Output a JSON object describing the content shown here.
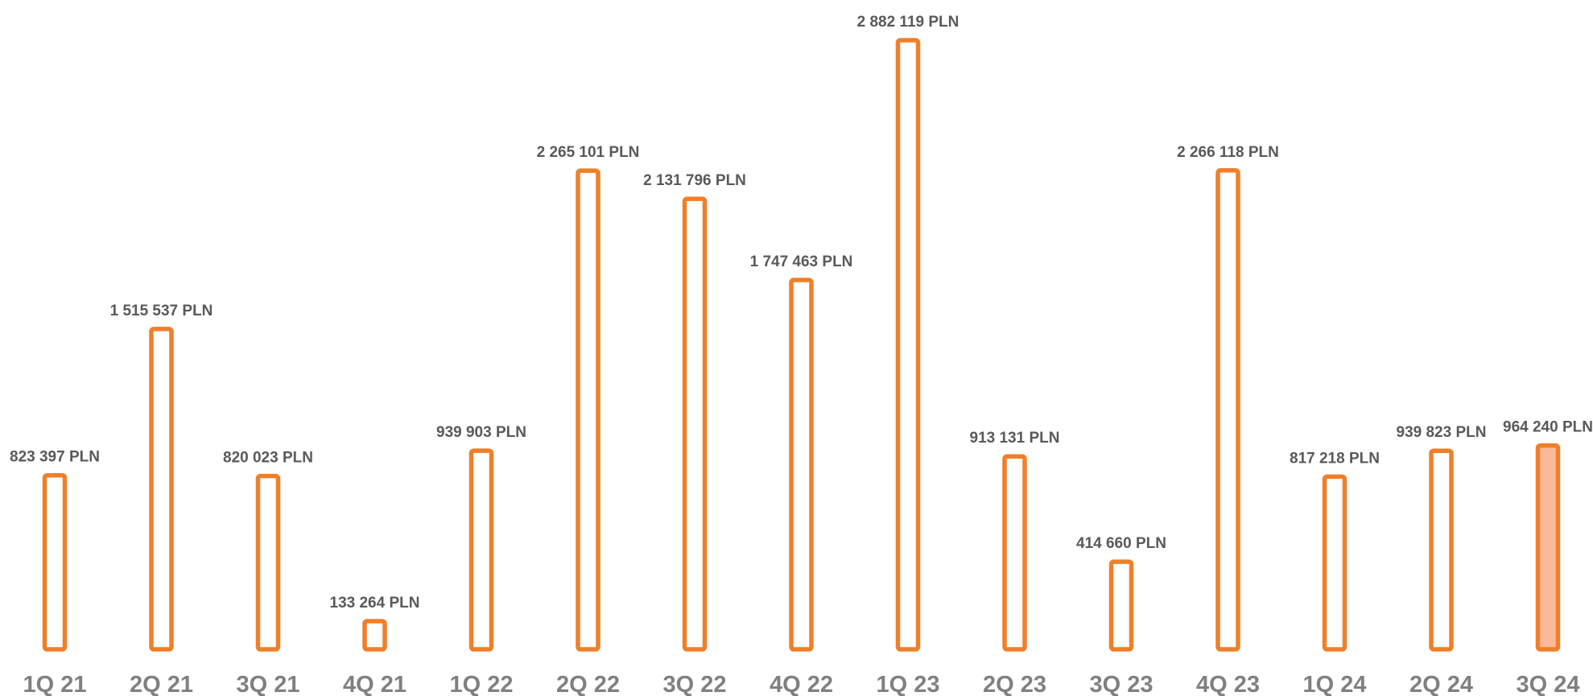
{
  "chart_data": {
    "type": "bar",
    "title": "",
    "xlabel": "",
    "ylabel": "",
    "unit": "PLN",
    "categories": [
      "1Q 21",
      "2Q 21",
      "3Q 21",
      "4Q 21",
      "1Q 22",
      "2Q 22",
      "3Q 22",
      "4Q 22",
      "1Q 23",
      "2Q 23",
      "3Q 23",
      "4Q 23",
      "1Q 24",
      "2Q 24",
      "3Q 24"
    ],
    "values": [
      823397,
      1515537,
      820023,
      133264,
      939903,
      2265101,
      2131796,
      1747463,
      2882119,
      913131,
      414660,
      2266118,
      817218,
      939823,
      964240
    ],
    "value_labels": [
      "823 397 PLN",
      "1 515 537 PLN",
      "820 023 PLN",
      "133 264 PLN",
      "939 903 PLN",
      "2 265 101 PLN",
      "2 131 796 PLN",
      "1 747 463 PLN",
      "2 882 119 PLN",
      "913 131 PLN",
      "414 660 PLN",
      "2 266 118 PLN",
      "817 218 PLN",
      "939 823 PLN",
      "964 240 PLN"
    ],
    "ylim": [
      0,
      2882119
    ],
    "grid": false,
    "legend": "none",
    "highlight_index": 14,
    "colors": {
      "bar_stroke": "#F07F2A",
      "bar_fill": "#FFFFFF",
      "highlight_fill": "#F9B99A",
      "value_label": "#595959",
      "category_label": "#808080"
    }
  }
}
